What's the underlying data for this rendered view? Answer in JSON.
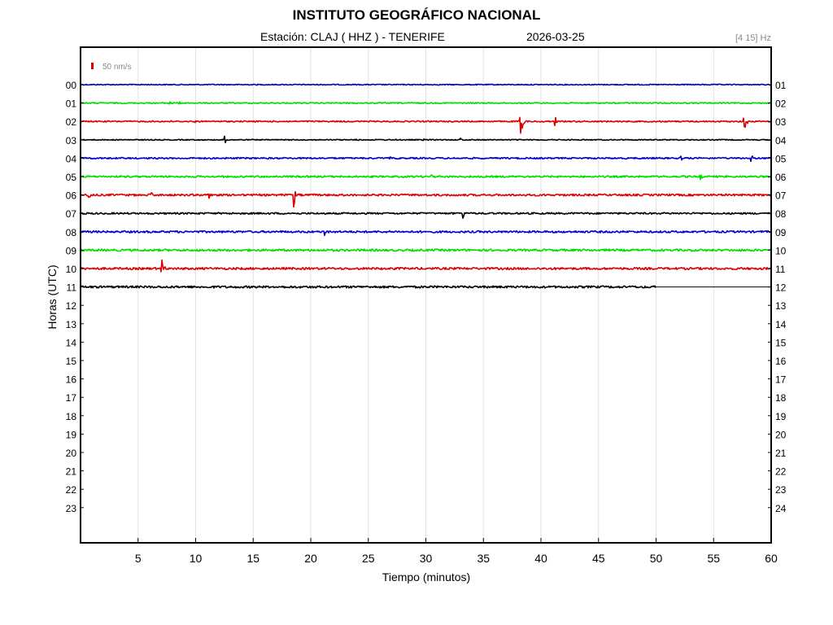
{
  "header": {
    "title": "INSTITUTO GEOGRÁFICO NACIONAL",
    "station_label": "Estación:  CLAJ ( HHZ ) - TENERIFE",
    "date": "2026-03-25",
    "filter_label": "[4 15] Hz"
  },
  "chart_data": {
    "type": "line",
    "title": "INSTITUTO GEOGRÁFICO NACIONAL",
    "xlabel": "Tiempo (minutos)",
    "ylabel": "Horas (UTC)",
    "xlim": [
      0,
      60
    ],
    "x_ticks": [
      5,
      10,
      15,
      20,
      25,
      30,
      35,
      40,
      45,
      50,
      55,
      60
    ],
    "left_hour_labels": [
      "00",
      "01",
      "02",
      "03",
      "04",
      "05",
      "06",
      "07",
      "08",
      "09",
      "10",
      "11",
      "12",
      "13",
      "14",
      "15",
      "16",
      "17",
      "18",
      "19",
      "20",
      "21",
      "22",
      "23"
    ],
    "right_hour_labels": [
      "01",
      "02",
      "03",
      "04",
      "05",
      "06",
      "07",
      "08",
      "09",
      "10",
      "11",
      "12",
      "13",
      "14",
      "15",
      "16",
      "17",
      "18",
      "19",
      "20",
      "21",
      "22",
      "23",
      "24"
    ],
    "scale_label": "50 nm/s",
    "grid": "vertical",
    "colors": [
      "#0000cc",
      "#00dd00",
      "#dd0000",
      "#000000"
    ],
    "traces": [
      {
        "hour": "00",
        "color": "#0000cc",
        "noise": 0.6,
        "end_minute": 60,
        "events": []
      },
      {
        "hour": "01",
        "color": "#00dd00",
        "noise": 0.7,
        "end_minute": 60,
        "events": [
          {
            "minute": 7.7,
            "amp": 3
          },
          {
            "minute": 8.6,
            "amp": 3
          }
        ]
      },
      {
        "hour": "02",
        "color": "#dd0000",
        "noise": 0.8,
        "end_minute": 60,
        "events": [
          {
            "minute": 9.9,
            "amp": 2
          },
          {
            "minute": 38.2,
            "amp": 32
          },
          {
            "minute": 41.2,
            "amp": 9
          },
          {
            "minute": 51.9,
            "amp": 2
          },
          {
            "minute": 57.6,
            "amp": 20
          }
        ]
      },
      {
        "hour": "03",
        "color": "#000000",
        "noise": 0.6,
        "end_minute": 60,
        "events": [
          {
            "minute": 12.5,
            "amp": 6
          },
          {
            "minute": 24.0,
            "amp": 2
          },
          {
            "minute": 29.7,
            "amp": 2
          },
          {
            "minute": 33.0,
            "amp": 2
          }
        ]
      },
      {
        "hour": "04",
        "color": "#0000cc",
        "noise": 0.9,
        "end_minute": 60,
        "events": [
          {
            "minute": 26.8,
            "amp": 2
          },
          {
            "minute": 52.1,
            "amp": 4
          },
          {
            "minute": 58.2,
            "amp": 6
          }
        ]
      },
      {
        "hour": "05",
        "color": "#00dd00",
        "noise": 1.1,
        "end_minute": 60,
        "events": [
          {
            "minute": 30.4,
            "amp": 4
          },
          {
            "minute": 53.8,
            "amp": 5
          }
        ]
      },
      {
        "hour": "06",
        "color": "#dd0000",
        "noise": 1.2,
        "end_minute": 60,
        "events": [
          {
            "minute": 0.7,
            "amp": 7
          },
          {
            "minute": 6.1,
            "amp": 5
          },
          {
            "minute": 11.1,
            "amp": 7
          },
          {
            "minute": 18.5,
            "amp": 17
          }
        ]
      },
      {
        "hour": "07",
        "color": "#000000",
        "noise": 1.0,
        "end_minute": 60,
        "events": [
          {
            "minute": 13.5,
            "amp": 2
          },
          {
            "minute": 33.2,
            "amp": 7
          }
        ]
      },
      {
        "hour": "08",
        "color": "#0000cc",
        "noise": 1.2,
        "end_minute": 60,
        "events": [
          {
            "minute": 21.2,
            "amp": 4
          }
        ]
      },
      {
        "hour": "09",
        "color": "#00dd00",
        "noise": 1.3,
        "end_minute": 60,
        "events": []
      },
      {
        "hour": "10",
        "color": "#dd0000",
        "noise": 1.3,
        "end_minute": 60,
        "events": [
          {
            "minute": 7.0,
            "amp": 19
          }
        ]
      },
      {
        "hour": "11",
        "color": "#000000",
        "noise": 1.3,
        "end_minute": 50,
        "events": [
          {
            "minute": 50.0,
            "amp": 5
          }
        ]
      }
    ]
  }
}
